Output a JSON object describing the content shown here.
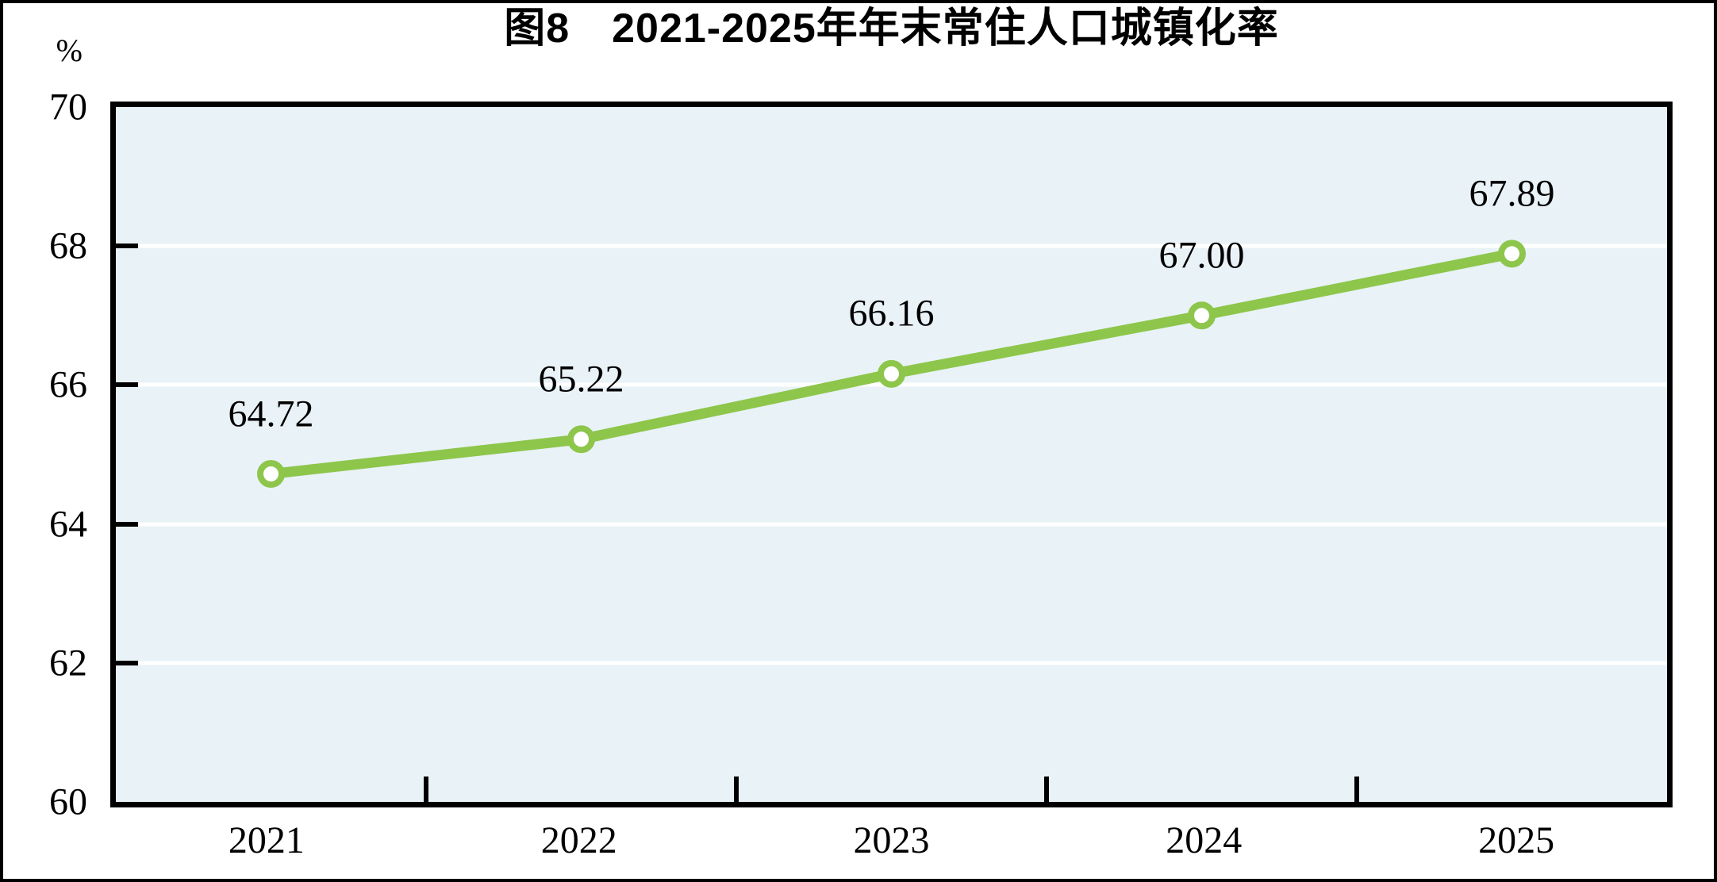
{
  "header": {
    "title": "图8　2021-2025年年末常住人口城镇化率"
  },
  "y_axis": {
    "unit_label": "%",
    "tick_labels": [
      "70",
      "68",
      "66",
      "64",
      "62",
      "60"
    ],
    "tick_values": [
      70,
      68,
      66,
      64,
      62,
      60
    ]
  },
  "x_axis": {
    "labels": [
      "2021",
      "2022",
      "2023",
      "2024",
      "2025"
    ]
  },
  "chart_data": {
    "type": "line",
    "title": "图8　2021-2025年年末常住人口城镇化率",
    "categories": [
      "2021",
      "2022",
      "2023",
      "2024",
      "2025"
    ],
    "values": [
      64.72,
      65.22,
      66.16,
      67.0,
      67.89
    ],
    "value_labels": [
      "64.72",
      "65.22",
      "66.16",
      "67.00",
      "67.89"
    ],
    "xlabel": "",
    "ylabel": "%",
    "ylim": [
      60,
      70
    ],
    "y_tick_step": 2,
    "gridline_values": [
      68,
      66,
      64,
      62
    ],
    "grid": "horizontal-white",
    "legend_position": "none",
    "colors": {
      "line": "#8dc64b",
      "marker_fill": "#ffffff",
      "marker_ring": "#8dc64b",
      "plot_background": "#e9f2f7",
      "grid": "#ffffff",
      "axis": "#000000",
      "text": "#000000"
    }
  }
}
